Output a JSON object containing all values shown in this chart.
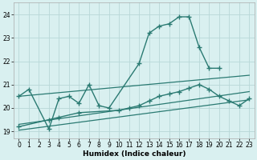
{
  "title": "",
  "xlabel": "Humidex (Indice chaleur)",
  "xlim": [
    -0.5,
    23.5
  ],
  "ylim": [
    18.7,
    24.5
  ],
  "xticks": [
    0,
    1,
    2,
    3,
    4,
    5,
    6,
    7,
    8,
    9,
    10,
    11,
    12,
    13,
    14,
    15,
    16,
    17,
    18,
    19,
    20,
    21,
    22,
    23
  ],
  "yticks": [
    19,
    20,
    21,
    22,
    23,
    24
  ],
  "background_color": "#d9f0f0",
  "grid_color": "#b8d8d8",
  "line_color": "#2a7a72",
  "series": [
    {
      "x": [
        0,
        1,
        3,
        4,
        5,
        6,
        7,
        8,
        9,
        12,
        13,
        14,
        15,
        16,
        17,
        18,
        19,
        20
      ],
      "y": [
        20.5,
        20.8,
        19.1,
        20.4,
        20.5,
        20.2,
        21.0,
        20.1,
        20.0,
        21.9,
        23.2,
        23.5,
        23.6,
        23.9,
        23.9,
        22.6,
        21.7,
        21.7
      ],
      "marker": "+",
      "markersize": 4,
      "linewidth": 1.0
    },
    {
      "x": [
        0,
        3,
        4,
        6,
        10,
        11,
        12,
        13,
        14,
        15,
        16,
        17,
        18,
        19,
        20,
        21,
        22,
        23
      ],
      "y": [
        19.2,
        19.5,
        19.6,
        19.8,
        19.9,
        20.0,
        20.1,
        20.3,
        20.5,
        20.6,
        20.7,
        20.85,
        21.0,
        20.8,
        20.5,
        20.3,
        20.1,
        20.4
      ],
      "marker": "+",
      "markersize": 4,
      "linewidth": 1.0
    },
    {
      "x": [
        0,
        23
      ],
      "y": [
        19.05,
        20.35
      ],
      "marker": null,
      "markersize": 0,
      "linewidth": 0.9
    },
    {
      "x": [
        0,
        23
      ],
      "y": [
        19.3,
        20.7
      ],
      "marker": null,
      "markersize": 0,
      "linewidth": 0.9
    },
    {
      "x": [
        0,
        23
      ],
      "y": [
        20.5,
        21.4
      ],
      "marker": null,
      "markersize": 0,
      "linewidth": 0.9
    }
  ]
}
